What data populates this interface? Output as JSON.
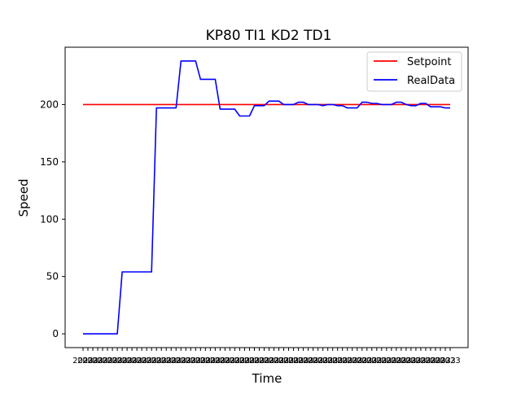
{
  "chart_data": {
    "type": "line",
    "title": "KP80 TI1 KD2 TD1",
    "xlabel": "Time",
    "ylabel": "Speed",
    "ylim": [
      -12,
      250
    ],
    "yticks": [
      0,
      50,
      100,
      150,
      200
    ],
    "legend": {
      "position": "top-right"
    },
    "grid": false,
    "xtick_label_prefix": "2023",
    "x": [
      0,
      1,
      2,
      3,
      4,
      5,
      6,
      7,
      8,
      9,
      10,
      11,
      12,
      13,
      14,
      15,
      16,
      17,
      18,
      19,
      20,
      21,
      22,
      23,
      24,
      25,
      26,
      27,
      28,
      29,
      30,
      31,
      32,
      33,
      34,
      35,
      36,
      37,
      38,
      39,
      40,
      41,
      42,
      43,
      44,
      45,
      46,
      47,
      48,
      49,
      50,
      51,
      52,
      53,
      54,
      55,
      56,
      57,
      58,
      59,
      60,
      61,
      62,
      63,
      64,
      65,
      66,
      67,
      68,
      69,
      70,
      71,
      72,
      73,
      74,
      75
    ],
    "series": [
      {
        "name": "Setpoint",
        "color": "#ff0000",
        "values": [
          200,
          200,
          200,
          200,
          200,
          200,
          200,
          200,
          200,
          200,
          200,
          200,
          200,
          200,
          200,
          200,
          200,
          200,
          200,
          200,
          200,
          200,
          200,
          200,
          200,
          200,
          200,
          200,
          200,
          200,
          200,
          200,
          200,
          200,
          200,
          200,
          200,
          200,
          200,
          200,
          200,
          200,
          200,
          200,
          200,
          200,
          200,
          200,
          200,
          200,
          200,
          200,
          200,
          200,
          200,
          200,
          200,
          200,
          200,
          200,
          200,
          200,
          200,
          200,
          200,
          200,
          200,
          200,
          200,
          200,
          200,
          200,
          200,
          200,
          200,
          200
        ]
      },
      {
        "name": "RealData",
        "color": "#0000ff",
        "values": [
          0,
          0,
          0,
          0,
          0,
          0,
          0,
          0,
          54,
          54,
          54,
          54,
          54,
          54,
          54,
          197,
          197,
          197,
          197,
          197,
          238,
          238,
          238,
          238,
          222,
          222,
          222,
          222,
          196,
          196,
          196,
          196,
          190,
          190,
          190,
          199,
          199,
          199,
          203,
          203,
          203,
          200,
          200,
          200,
          202,
          202,
          200,
          200,
          200,
          199,
          200,
          200,
          199,
          199,
          197,
          197,
          197,
          202,
          202,
          201,
          201,
          200,
          200,
          200,
          202,
          202,
          200,
          199,
          199,
          201,
          201,
          198,
          198,
          198,
          197,
          197
        ]
      }
    ]
  }
}
